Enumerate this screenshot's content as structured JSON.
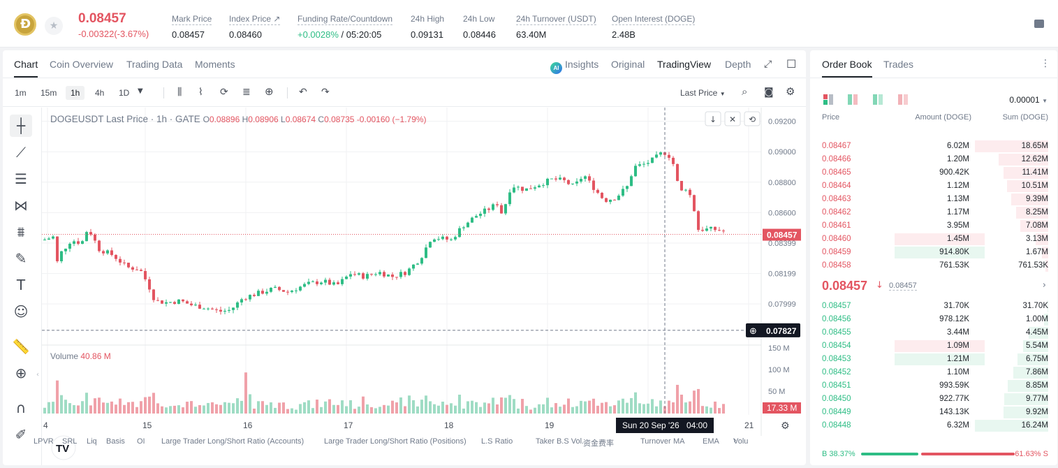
{
  "header": {
    "last_price": "0.08457",
    "change": "-0.00322(-3.67%)",
    "stats": [
      {
        "label": "Mark Price",
        "value": "0.08457"
      },
      {
        "label": "Index Price ↗",
        "value": "0.08460"
      },
      {
        "label": "Funding Rate/Countdown",
        "value_green": "+0.0028%",
        "value_rest": " / 05:20:05"
      },
      {
        "label": "24h High",
        "value": "0.09131"
      },
      {
        "label": "24h Low",
        "value": "0.08446"
      },
      {
        "label": "24h Turnover (USDT)",
        "value": "63.40M"
      },
      {
        "label": "Open Interest (DOGE)",
        "value": "2.48B"
      }
    ]
  },
  "chart_tabs": [
    "Chart",
    "Coin Overview",
    "Trading Data",
    "Moments"
  ],
  "view_tabs": {
    "insights": "Insights",
    "ai_badge": "AI",
    "original": "Original",
    "tradingview": "TradingView",
    "depth": "Depth"
  },
  "intervals": [
    "1m",
    "15m",
    "1h",
    "4h",
    "1D"
  ],
  "price_source": "Last Price",
  "legend": {
    "symbol": "DOGEUSDT Last Price · 1h · GATE",
    "o": "0.08896",
    "h": "0.08906",
    "l": "0.08674",
    "c": "0.08735",
    "chg": "-0.00160 (−1.79%)",
    "volume_label": "Volume",
    "volume_value": "40.86 M"
  },
  "crosshair": {
    "date_label": "Sun 20 Sep '26",
    "time_label": "04:00",
    "price_label": "0.07827"
  },
  "indicators": [
    "LPVR",
    "SRL",
    "Liq",
    "Basis",
    "OI",
    "Large Trader Long/Short Ratio (Accounts)",
    "Large Trader Long/Short Ratio (Positions)",
    "L.S Ratio",
    "Taker B.S Vol.",
    "资金费率",
    "Turnover",
    "MA",
    "EMA",
    "Volu"
  ],
  "chart_data": {
    "type": "candlestick",
    "title": "DOGEUSDT Last Price · 1h · GATE",
    "price_axis": {
      "ticks": [
        "0.09200",
        "0.09000",
        "0.08800",
        "0.08600",
        "0.08399",
        "0.08199",
        "0.07999"
      ],
      "range": [
        0.0773,
        0.0929
      ]
    },
    "volume_axis": {
      "ticks": [
        "150 M",
        "100 M",
        "50 M"
      ],
      "range": [
        0,
        160
      ]
    },
    "x_ticks": [
      "4",
      "15",
      "16",
      "17",
      "18",
      "19",
      "21"
    ],
    "last_price_label": "0.08457",
    "last_volume_label": "17.33 M",
    "series": [
      {
        "name": "price",
        "anchors": [
          [
            0,
            0.0842
          ],
          [
            14,
            0.0844
          ],
          [
            22,
            0.0822
          ],
          [
            26,
            0.0834
          ],
          [
            40,
            0.0842
          ],
          [
            55,
            0.084
          ],
          [
            64,
            0.085
          ],
          [
            80,
            0.0836
          ],
          [
            100,
            0.0832
          ],
          [
            120,
            0.0824
          ],
          [
            138,
            0.0823
          ],
          [
            150,
            0.0813
          ],
          [
            160,
            0.0802
          ],
          [
            176,
            0.0801
          ],
          [
            196,
            0.0802
          ],
          [
            214,
            0.0799
          ],
          [
            230,
            0.0798
          ],
          [
            252,
            0.0795
          ],
          [
            268,
            0.0796
          ],
          [
            286,
            0.0804
          ],
          [
            300,
            0.0806
          ],
          [
            330,
            0.081
          ],
          [
            350,
            0.0808
          ],
          [
            378,
            0.0813
          ],
          [
            400,
            0.0815
          ],
          [
            420,
            0.0812
          ],
          [
            440,
            0.082
          ],
          [
            460,
            0.0818
          ],
          [
            480,
            0.0821
          ],
          [
            500,
            0.0818
          ],
          [
            520,
            0.0821
          ],
          [
            540,
            0.083
          ],
          [
            556,
            0.0844
          ],
          [
            584,
            0.0842
          ],
          [
            600,
            0.0851
          ],
          [
            620,
            0.0858
          ],
          [
            640,
            0.0863
          ],
          [
            650,
            0.0866
          ],
          [
            656,
            0.086
          ],
          [
            662,
            0.0866
          ],
          [
            670,
            0.0878
          ],
          [
            690,
            0.0875
          ],
          [
            712,
            0.0879
          ],
          [
            730,
            0.0882
          ],
          [
            745,
            0.0881
          ],
          [
            760,
            0.0877
          ],
          [
            774,
            0.0885
          ],
          [
            780,
            0.0881
          ],
          [
            796,
            0.0872
          ],
          [
            804,
            0.0868
          ],
          [
            820,
            0.087
          ],
          [
            836,
            0.0877
          ],
          [
            846,
            0.089
          ],
          [
            862,
            0.0892
          ],
          [
            874,
            0.0895
          ],
          [
            888,
            0.09
          ],
          [
            900,
            0.0896
          ],
          [
            912,
            0.0872
          ],
          [
            918,
            0.0878
          ],
          [
            930,
            0.0868
          ],
          [
            936,
            0.0849
          ],
          [
            960,
            0.0849
          ],
          [
            974,
            0.0848
          ],
          [
            984,
            0.0844
          ]
        ]
      }
    ]
  },
  "order_book": {
    "tabs": [
      "Order Book",
      "Trades"
    ],
    "precision": "0.00001",
    "headers": {
      "price": "Price",
      "amount": "Amount (DOGE)",
      "sum": "Sum (DOGE)"
    },
    "asks": [
      {
        "price": "0.08467",
        "amount": "6.02M",
        "sum": "18.65M",
        "depth": 1.0
      },
      {
        "price": "0.08466",
        "amount": "1.20M",
        "sum": "12.62M",
        "depth": 0.68
      },
      {
        "price": "0.08465",
        "amount": "900.42K",
        "sum": "11.41M",
        "depth": 0.61
      },
      {
        "price": "0.08464",
        "amount": "1.12M",
        "sum": "10.51M",
        "depth": 0.56
      },
      {
        "price": "0.08463",
        "amount": "1.13M",
        "sum": "9.39M",
        "depth": 0.5
      },
      {
        "price": "0.08462",
        "amount": "1.17M",
        "sum": "8.25M",
        "depth": 0.44
      },
      {
        "price": "0.08461",
        "amount": "3.95M",
        "sum": "7.08M",
        "depth": 0.38
      },
      {
        "price": "0.08460",
        "amount": "1.45M",
        "sum": "3.13M",
        "depth": 0.17,
        "highlight": 0.6
      },
      {
        "price": "0.08459",
        "amount": "914.80K",
        "sum": "1.67M",
        "depth": 0.09,
        "highlight_green": 0.6
      },
      {
        "price": "0.08458",
        "amount": "761.53K",
        "sum": "761.53K",
        "depth": 0.04
      }
    ],
    "mid": {
      "price": "0.08457",
      "arrow": "🡓",
      "mark": "0.08457"
    },
    "bids": [
      {
        "price": "0.08457",
        "amount": "31.70K",
        "sum": "31.70K",
        "depth": 0.01
      },
      {
        "price": "0.08456",
        "amount": "978.12K",
        "sum": "1.00M",
        "depth": 0.06
      },
      {
        "price": "0.08455",
        "amount": "3.44M",
        "sum": "4.45M",
        "depth": 0.27
      },
      {
        "price": "0.08454",
        "amount": "1.09M",
        "sum": "5.54M",
        "depth": 0.34,
        "highlight": 0.6
      },
      {
        "price": "0.08453",
        "amount": "1.21M",
        "sum": "6.75M",
        "depth": 0.42,
        "highlight_green": 0.6
      },
      {
        "price": "0.08452",
        "amount": "1.10M",
        "sum": "7.86M",
        "depth": 0.48
      },
      {
        "price": "0.08451",
        "amount": "993.59K",
        "sum": "8.85M",
        "depth": 0.55
      },
      {
        "price": "0.08450",
        "amount": "922.77K",
        "sum": "9.77M",
        "depth": 0.6
      },
      {
        "price": "0.08449",
        "amount": "143.13K",
        "sum": "9.92M",
        "depth": 0.61
      },
      {
        "price": "0.08448",
        "amount": "6.32M",
        "sum": "16.24M",
        "depth": 1.0
      }
    ],
    "ratio": {
      "buy_label": "B",
      "buy_pct": "38.37%",
      "sell_pct": "61.63%",
      "sell_label": "S",
      "buy": 0.3837
    }
  },
  "colors": {
    "up": "#2ebd85",
    "down": "#e35561",
    "up_vol": "#9fdcc4",
    "down_vol": "#f0a1a9",
    "ask_bg": "#fdecee",
    "bid_bg": "#e8f7f0"
  }
}
